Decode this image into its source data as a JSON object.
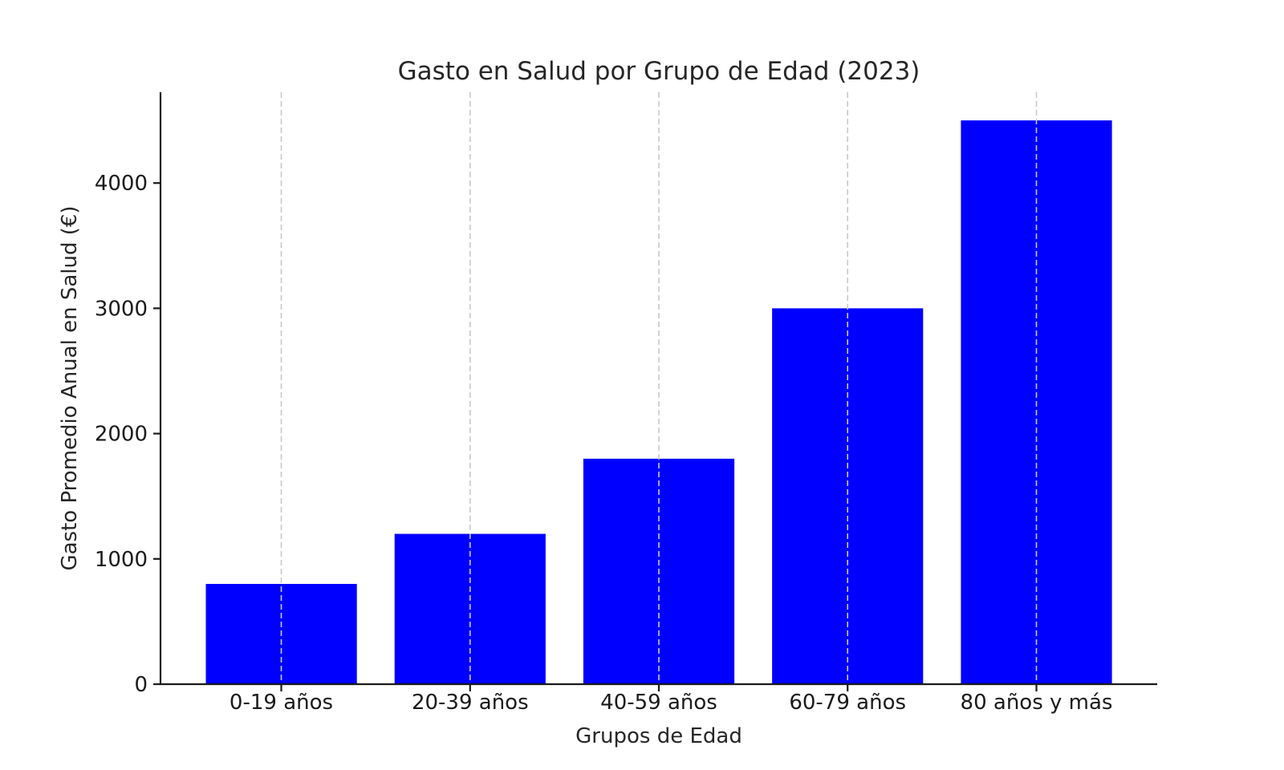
{
  "chart_data": {
    "type": "bar",
    "title": "Gasto en Salud por Grupo de Edad (2023)",
    "xlabel": "Grupos de Edad",
    "ylabel": "Gasto Promedio Anual en Salud (€)",
    "categories": [
      "0-19 años",
      "20-39 años",
      "40-59 años",
      "60-79 años",
      "80 años y más"
    ],
    "values": [
      800,
      1200,
      1800,
      3000,
      4500
    ],
    "yticks": [
      0,
      1000,
      2000,
      3000,
      4000
    ],
    "ylim": [
      0,
      4725
    ],
    "bar_color": "#0000ff",
    "gridline_color": "#c9c9c9",
    "grid": "vertical-dashed-on-top-of-bars",
    "legend": "none",
    "spine_color": "#1a1a1a",
    "background_color": "#ffffff"
  }
}
